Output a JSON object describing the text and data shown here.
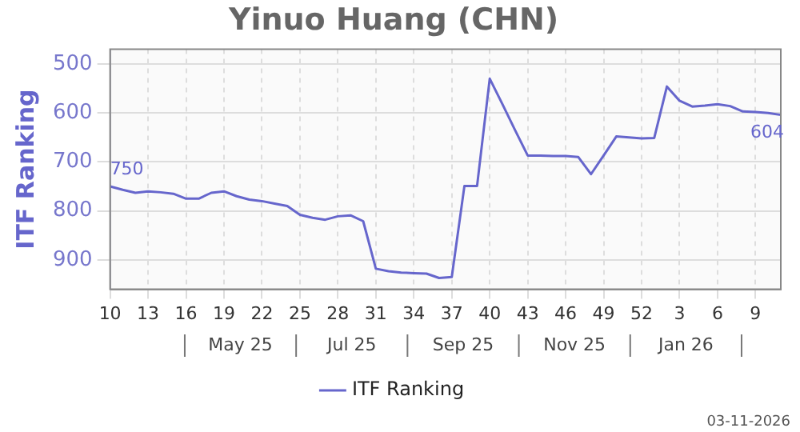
{
  "chart_data": {
    "type": "line",
    "title": "Yinuo Huang (CHN)",
    "ylabel": "ITF Ranking",
    "categories": [
      "10",
      null,
      null,
      "13",
      null,
      null,
      "16",
      null,
      null,
      "19",
      null,
      null,
      "22",
      null,
      null,
      "25",
      null,
      null,
      "28",
      null,
      null,
      "31",
      null,
      null,
      "34",
      null,
      null,
      "37",
      null,
      null,
      "40",
      null,
      null,
      "43",
      null,
      null,
      "46",
      null,
      null,
      "49",
      null,
      null,
      "52",
      null,
      null,
      "3",
      null,
      null,
      "6",
      null,
      null,
      "9",
      null,
      null
    ],
    "series": [
      {
        "name": "ITF Ranking",
        "color": "#6666cc",
        "values": [
          750,
          757,
          763,
          760,
          762,
          765,
          775,
          775,
          763,
          760,
          770,
          777,
          780,
          785,
          790,
          808,
          814,
          818,
          811,
          809,
          821,
          918,
          923,
          926,
          927,
          928,
          937,
          935,
          749,
          749,
          530,
          582,
          635,
          687,
          687,
          688,
          688,
          690,
          725,
          687,
          648,
          650,
          652,
          651,
          546,
          575,
          587,
          585,
          582,
          586,
          597,
          598,
          600,
          604
        ],
        "value_labels": [
          "750",
          null,
          null,
          null,
          null,
          null,
          null,
          null,
          null,
          null,
          null,
          null,
          null,
          null,
          null,
          null,
          null,
          null,
          null,
          null,
          null,
          null,
          null,
          null,
          null,
          null,
          null,
          null,
          null,
          null,
          null,
          null,
          null,
          null,
          null,
          null,
          null,
          null,
          null,
          null,
          null,
          null,
          null,
          null,
          null,
          null,
          null,
          null,
          null,
          null,
          null,
          null,
          null,
          "604"
        ]
      }
    ],
    "ylim": [
      960,
      470
    ],
    "yticks": [
      500,
      600,
      700,
      800,
      900
    ],
    "grid": true,
    "legend": "bottom",
    "marker": "none",
    "line_style": "solid",
    "annotations": [
      "May 25",
      "Jul 25",
      "Sep 25",
      "Nov 25",
      "Jan 26",
      "03-11-2026"
    ]
  }
}
